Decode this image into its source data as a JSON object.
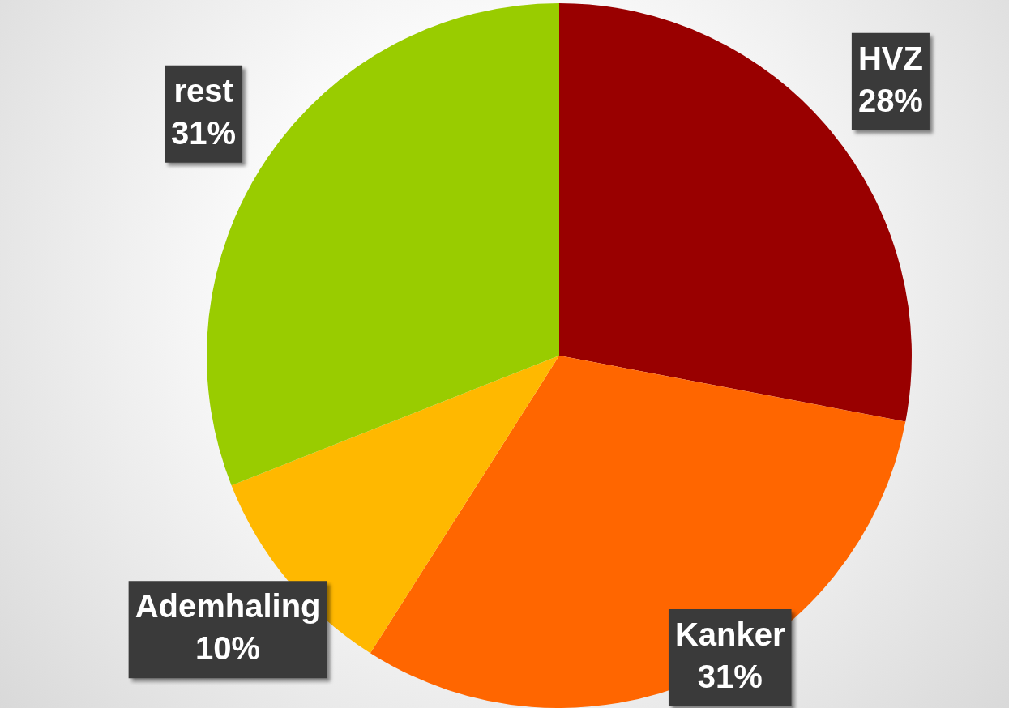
{
  "chart_data": {
    "type": "pie",
    "categories": [
      "HVZ",
      "Kanker",
      "Ademhaling",
      "rest"
    ],
    "values": [
      28,
      31,
      10,
      31
    ],
    "value_labels": [
      "28%",
      "31%",
      "10%",
      "31%"
    ],
    "colors": [
      "#990000",
      "#ff6600",
      "#ffb800",
      "#99cc00"
    ]
  }
}
